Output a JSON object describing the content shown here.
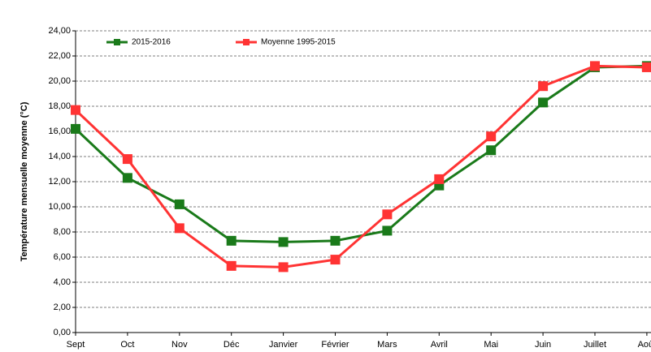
{
  "chart_data": {
    "type": "line",
    "y_label": "Température mensuelle moyenne (°C)",
    "categories": [
      "Sept",
      "Oct",
      "Nov",
      "Déc",
      "Janvier",
      "Février",
      "Mars",
      "Avril",
      "Mai",
      "Juin",
      "Juillet",
      "Août"
    ],
    "series": [
      {
        "name": "2015-2016",
        "color": "#1a7a1a",
        "values": [
          16.2,
          12.3,
          10.2,
          7.3,
          7.2,
          7.3,
          8.1,
          11.7,
          14.5,
          18.3,
          21.1,
          21.2
        ]
      },
      {
        "name": "Moyenne 1995-2015",
        "color": "#ff3333",
        "values": [
          17.7,
          13.8,
          8.3,
          5.3,
          5.2,
          5.8,
          9.4,
          12.2,
          15.6,
          19.6,
          21.2,
          21.1
        ]
      }
    ],
    "ylim": [
      0,
      24
    ],
    "yticks": [
      {
        "value": 0,
        "label": "0,00"
      },
      {
        "value": 2,
        "label": "2,00"
      },
      {
        "value": 4,
        "label": "4,00"
      },
      {
        "value": 6,
        "label": "6,00"
      },
      {
        "value": 8,
        "label": "8,00"
      },
      {
        "value": 10,
        "label": "10,00"
      },
      {
        "value": 12,
        "label": "12,00"
      },
      {
        "value": 14,
        "label": "14,00"
      },
      {
        "value": 16,
        "label": "16,00"
      },
      {
        "value": 18,
        "label": "18,00"
      },
      {
        "value": 20,
        "label": "20,00"
      },
      {
        "value": 22,
        "label": "22,00"
      },
      {
        "value": 24,
        "label": "24,00"
      }
    ],
    "grid": true
  }
}
